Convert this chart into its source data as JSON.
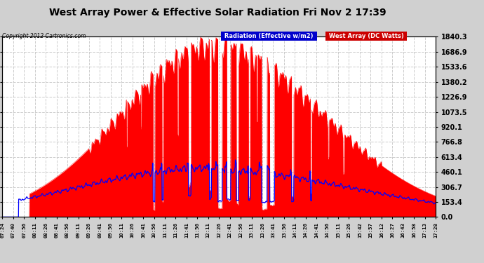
{
  "title": "West Array Power & Effective Solar Radiation Fri Nov 2 17:39",
  "copyright": "Copyright 2012 Cartronics.com",
  "legend_blue": "Radiation (Effective w/m2)",
  "legend_red": "West Array (DC Watts)",
  "yticks": [
    0.0,
    153.4,
    306.7,
    460.1,
    613.4,
    766.8,
    920.1,
    1073.5,
    1226.9,
    1380.2,
    1533.6,
    1686.9,
    1840.3
  ],
  "ymax": 1840.3,
  "red_color": "#ff0000",
  "blue_color": "#0000ff",
  "fig_bg": "#d0d0d0",
  "plot_bg": "#ffffff",
  "grid_color": "#bbbbbb",
  "title_color": "#000000",
  "xtick_labels": [
    "07:24",
    "07:40",
    "07:56",
    "08:11",
    "08:26",
    "08:41",
    "08:56",
    "09:11",
    "09:26",
    "09:41",
    "09:56",
    "10:11",
    "10:26",
    "10:41",
    "10:56",
    "11:11",
    "11:26",
    "11:41",
    "11:56",
    "12:11",
    "12:26",
    "12:41",
    "12:56",
    "13:11",
    "13:26",
    "13:41",
    "13:56",
    "14:11",
    "14:26",
    "14:41",
    "14:56",
    "15:11",
    "15:26",
    "15:42",
    "15:57",
    "16:12",
    "16:27",
    "16:43",
    "16:58",
    "17:13",
    "17:28"
  ]
}
